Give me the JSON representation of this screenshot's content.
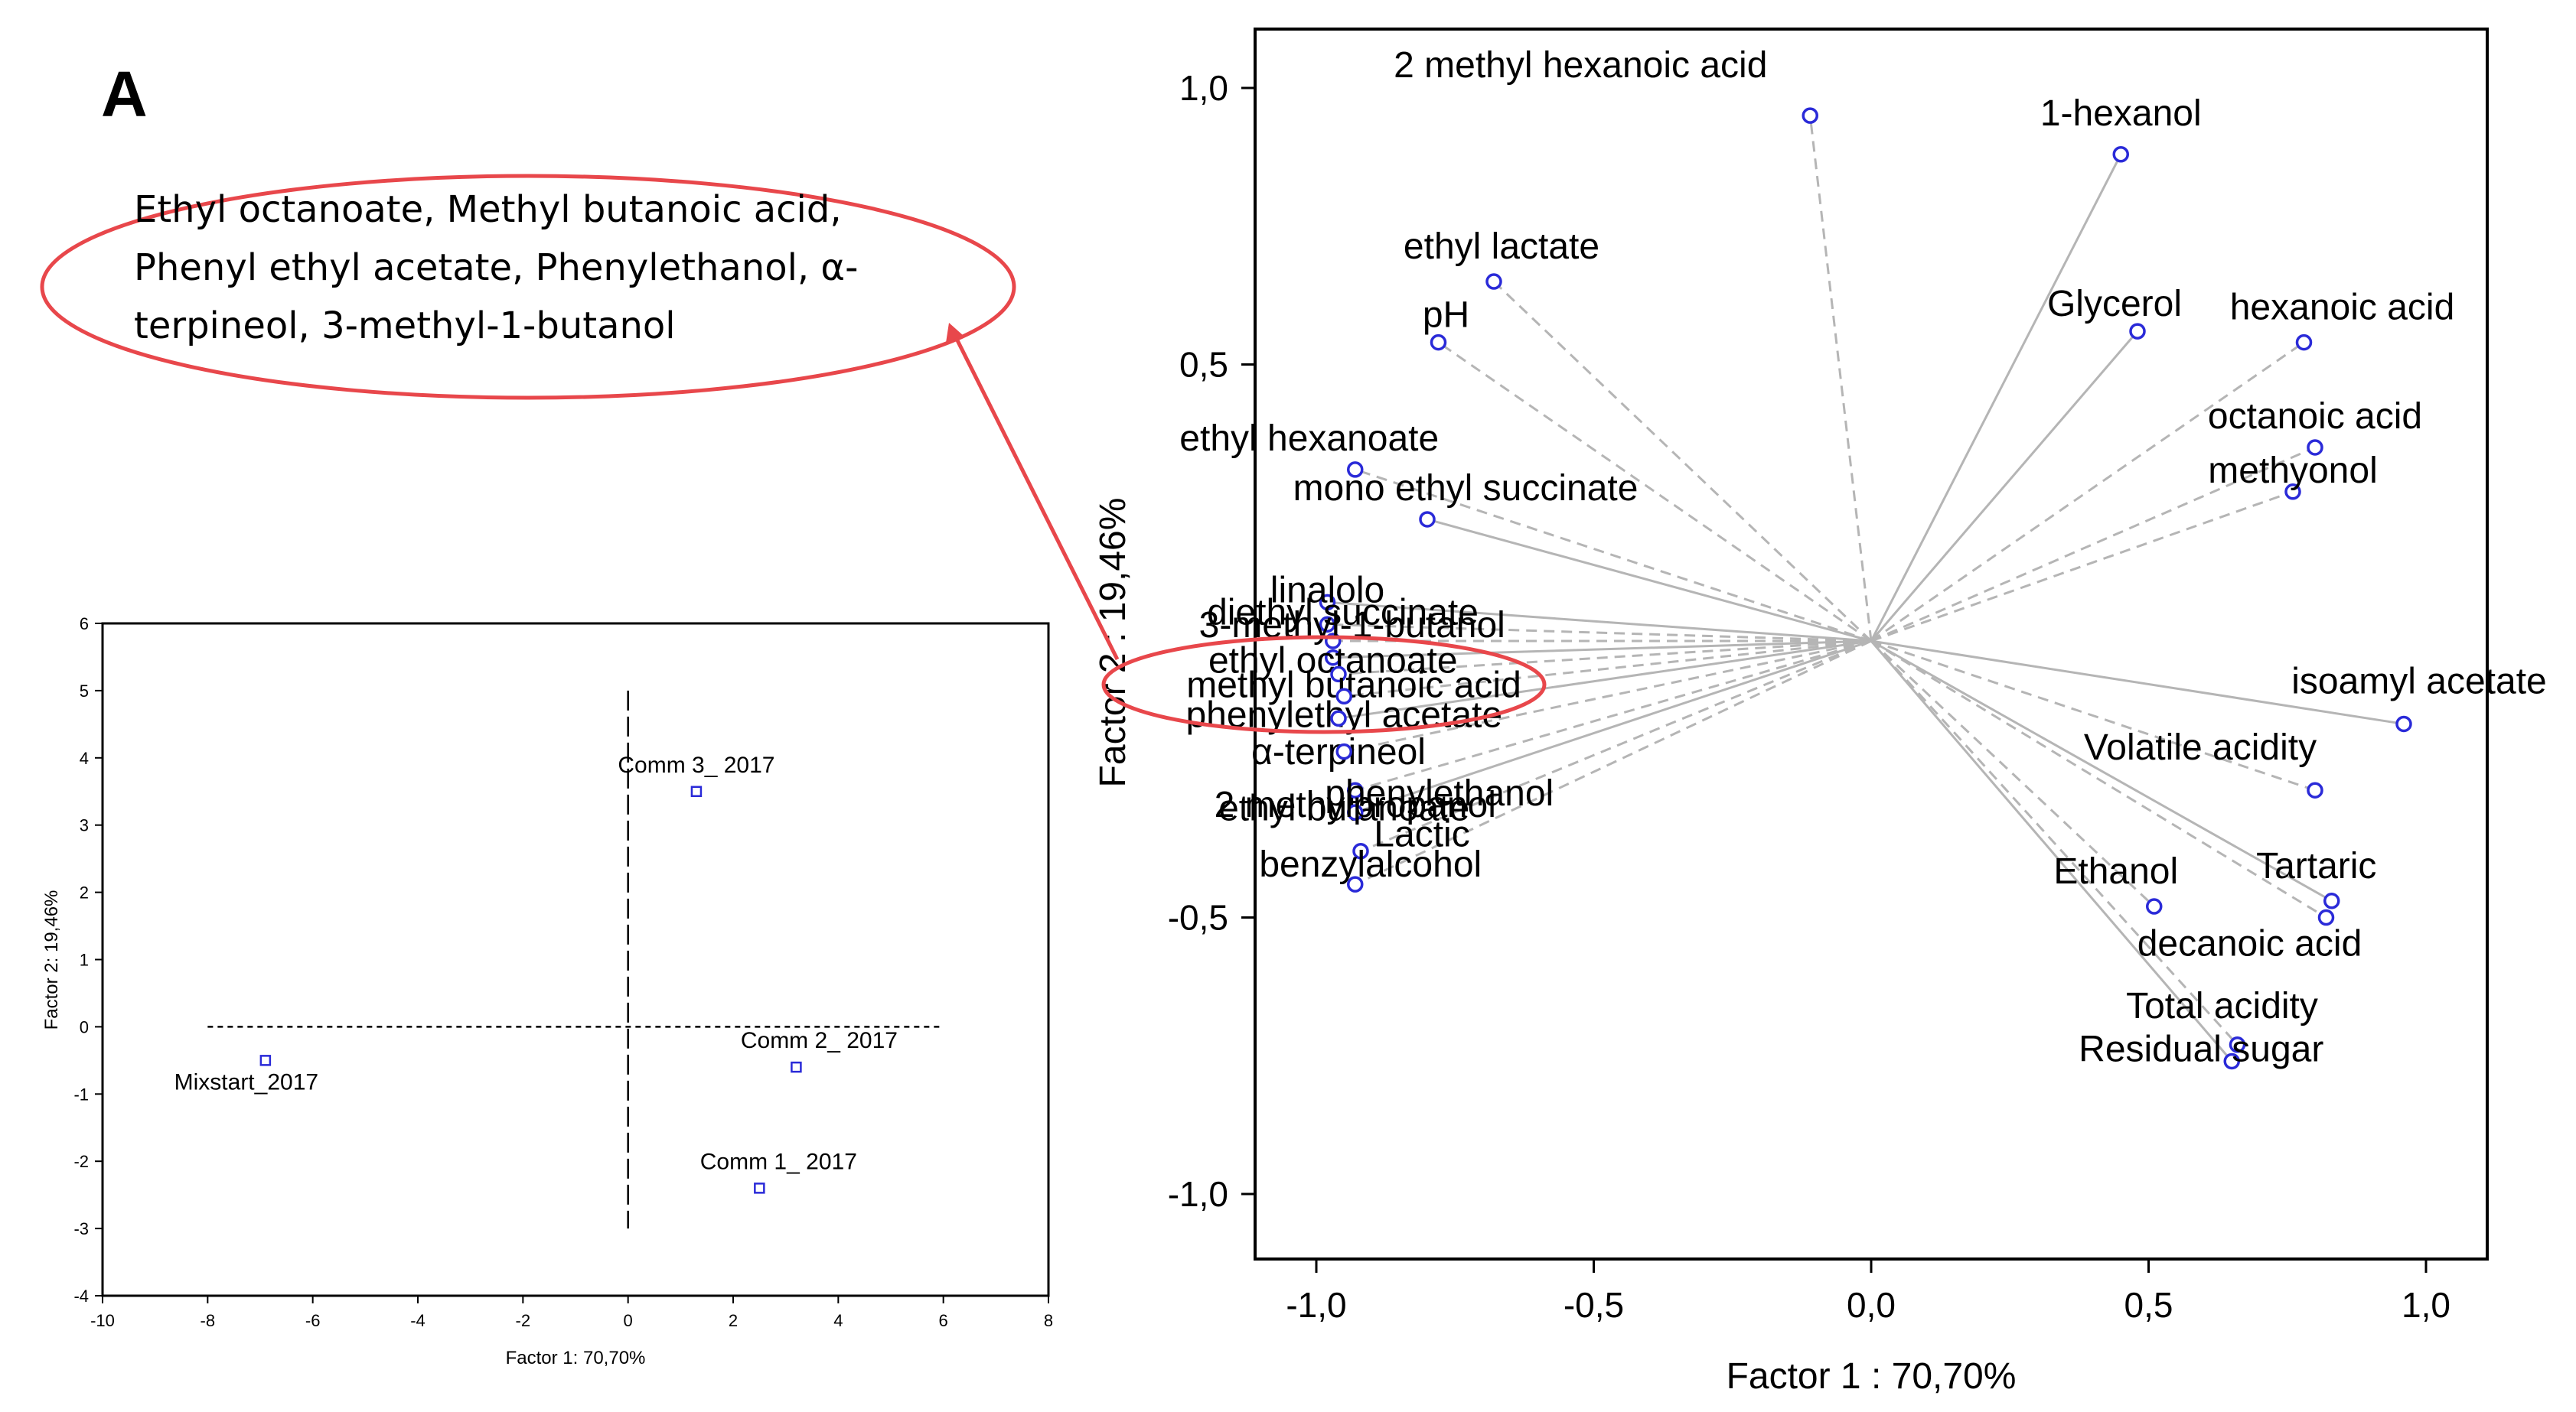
{
  "panel_label": "A",
  "callout": {
    "lines": [
      "Ethyl octanoate, Methyl butanoic acid,",
      "Phenyl ethyl acetate, Phenylethanol, α-",
      "terpineol, 3-methyl-1-butanol"
    ],
    "ellipse_color": "#e8474b"
  },
  "colors": {
    "point": "#2a2ad8",
    "vector": "#b5b5b5",
    "axis": "#000000"
  },
  "chart_data": [
    {
      "type": "scatter",
      "title": "",
      "xlabel": "Factor 1 : 70,70%",
      "ylabel": "Factor 2 : 19,46%",
      "xlim": [
        -1.1,
        1.1
      ],
      "ylim": [
        -1.15,
        1.1
      ],
      "xticks": [
        "-1,0",
        "-0,5",
        "0,0",
        "0,5",
        "1,0"
      ],
      "yticks": [
        "1,0",
        "0,5",
        "-0,5",
        "-1,0"
      ],
      "grid": false,
      "vectors_from_origin": true,
      "points": [
        {
          "label": "2 methyl hexanoic acid",
          "x": -0.11,
          "y": 0.95
        },
        {
          "label": "1-hexanol",
          "x": 0.45,
          "y": 0.88
        },
        {
          "label": "ethyl lactate",
          "x": -0.68,
          "y": 0.65
        },
        {
          "label": "pH",
          "x": -0.78,
          "y": 0.54
        },
        {
          "label": "Glycerol",
          "x": 0.48,
          "y": 0.56
        },
        {
          "label": "hexanoic acid",
          "x": 0.78,
          "y": 0.54
        },
        {
          "label": "ethyl hexanoate",
          "x": -0.93,
          "y": 0.31
        },
        {
          "label": "mono ethyl succinate",
          "x": -0.8,
          "y": 0.22
        },
        {
          "label": "octanoic acid",
          "x": 0.8,
          "y": 0.35
        },
        {
          "label": "methyonol",
          "x": 0.76,
          "y": 0.27
        },
        {
          "label": "linalolo",
          "x": -0.98,
          "y": 0.07
        },
        {
          "label": "diethyl succinate",
          "x": -0.98,
          "y": 0.03
        },
        {
          "label": "3-methyl-1-butanol",
          "x": -0.97,
          "y": 0.0
        },
        {
          "label": "ethyl octanoate",
          "x": -0.97,
          "y": -0.03
        },
        {
          "label": "methyl butanoic acid",
          "x": -0.96,
          "y": -0.06
        },
        {
          "label": "phenylethyl acetate",
          "x": -0.95,
          "y": -0.1
        },
        {
          "label": "α-terpineol",
          "x": -0.96,
          "y": -0.14
        },
        {
          "label": "ethyl butanoate",
          "x": -0.95,
          "y": -0.2
        },
        {
          "label": "phenylethanol",
          "x": -0.93,
          "y": -0.27
        },
        {
          "label": "2 methylpropanol",
          "x": -0.93,
          "y": -0.31
        },
        {
          "label": "Lactic",
          "x": -0.92,
          "y": -0.38
        },
        {
          "label": "benzylalcohol",
          "x": -0.93,
          "y": -0.44
        },
        {
          "label": "isoamyl acetate",
          "x": 0.96,
          "y": -0.15
        },
        {
          "label": "Volatile acidity",
          "x": 0.8,
          "y": -0.27
        },
        {
          "label": "Ethanol",
          "x": 0.51,
          "y": -0.48
        },
        {
          "label": "Tartaric",
          "x": 0.83,
          "y": -0.47
        },
        {
          "label": "decanoic acid",
          "x": 0.82,
          "y": -0.5
        },
        {
          "label": "Total acidity",
          "x": 0.66,
          "y": -0.73
        },
        {
          "label": "Residual sugar",
          "x": 0.65,
          "y": -0.76
        }
      ]
    },
    {
      "type": "scatter",
      "title": "",
      "xlabel": "Factor 1: 70,70%",
      "ylabel": "Factor 2: 19,46%",
      "xlim": [
        -10,
        8
      ],
      "ylim": [
        -4,
        6
      ],
      "xticks": [
        -10,
        -8,
        -6,
        -4,
        -2,
        0,
        2,
        4,
        6,
        8
      ],
      "yticks": [
        -4,
        -3,
        -2,
        -1,
        0,
        1,
        2,
        3,
        4,
        5,
        6
      ],
      "grid": false,
      "points": [
        {
          "label": "Comm 3_ 2017",
          "x": 1.3,
          "y": 3.5
        },
        {
          "label": "Comm 2_ 2017",
          "x": 3.2,
          "y": -0.6
        },
        {
          "label": "Comm 1_ 2017",
          "x": 2.5,
          "y": -2.4
        },
        {
          "label": "Mixstart_2017",
          "x": -6.9,
          "y": -0.5
        }
      ]
    }
  ]
}
